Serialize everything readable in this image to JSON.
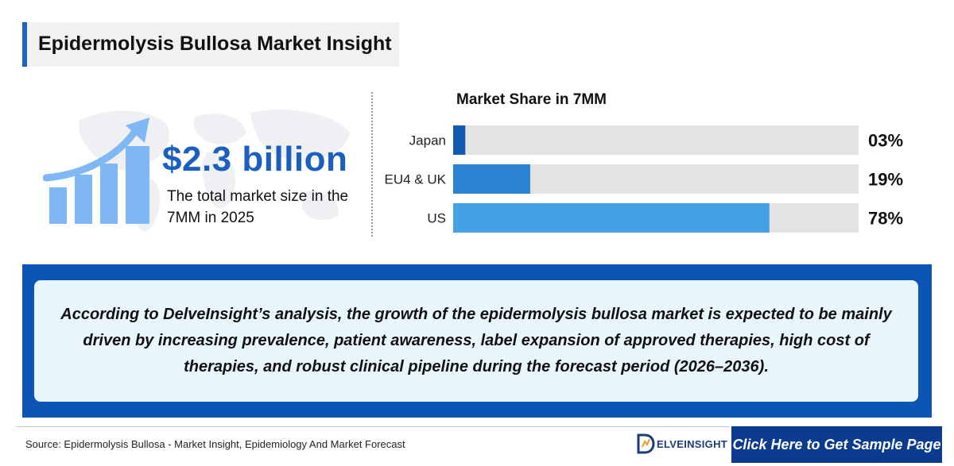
{
  "header": {
    "title": "Epidermolysis Bullosa Market Insight"
  },
  "highlight": {
    "value": "$2.3 billion",
    "description": "The total market size in the 7MM in 2025"
  },
  "chart_data": {
    "type": "bar",
    "orientation": "horizontal",
    "title": "Market Share in 7MM",
    "categories": [
      "Japan",
      "EU4 & UK",
      "US"
    ],
    "values": [
      3,
      19,
      78
    ],
    "value_labels": [
      "03%",
      "19%",
      "78%"
    ],
    "xlim": [
      0,
      100
    ],
    "bar_colors": [
      "#1559b3",
      "#2a82d1",
      "#44a2e4"
    ],
    "track_color": "#e3e3e3"
  },
  "banner": {
    "text": "According to DelveInsight’s analysis, the growth of the epidermolysis bullosa market is expected to be mainly driven by increasing prevalence, patient awareness, label expansion of approved therapies, high cost of therapies, and robust clinical pipeline during the forecast period (2026–2036)."
  },
  "footer": {
    "source": "Source: Epidermolysis Bullosa - Market Insight, Epidemiology And Market Forecast",
    "logo_text": "ELVEINSIGHT",
    "cta_label": "Click Here to Get Sample Page"
  },
  "colors": {
    "accent": "#1b5fbf",
    "banner": "#0c55b6",
    "cta": "#0b3b8f"
  }
}
